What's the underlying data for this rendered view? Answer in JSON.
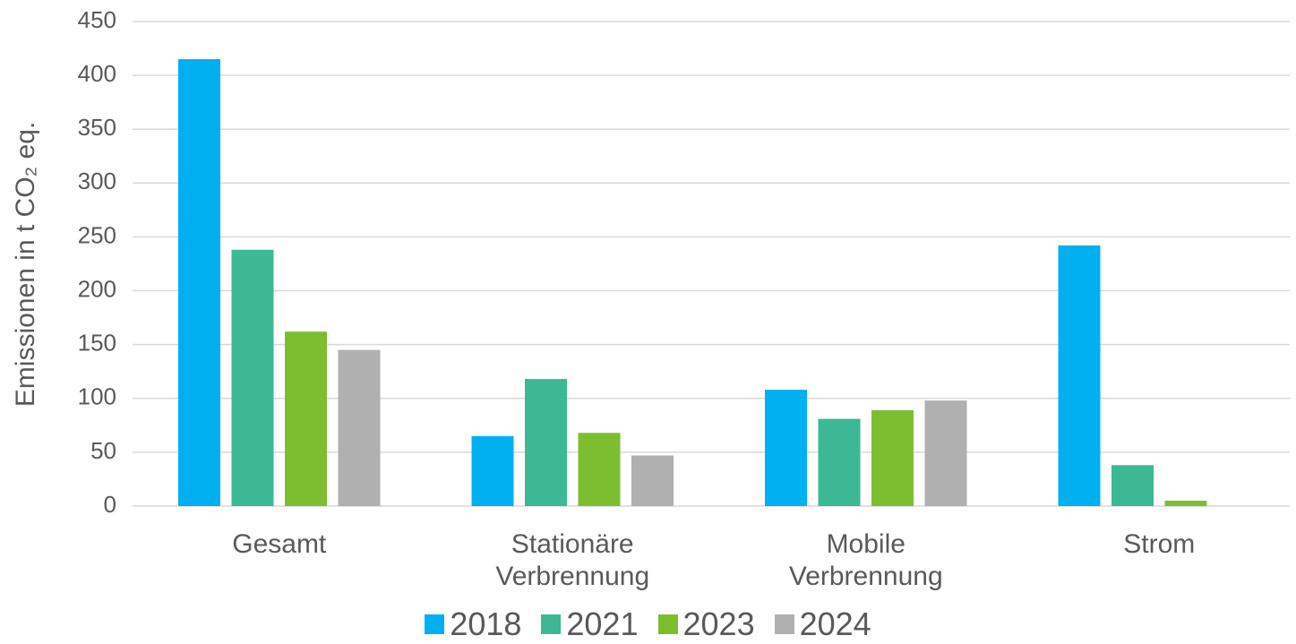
{
  "chart_data": {
    "type": "bar",
    "y_label": "Emissionen in t CO₂ eq.",
    "categories": [
      "Gesamt",
      "Stationäre Verbrennung",
      "Mobile Verbrennung",
      "Strom"
    ],
    "series": [
      {
        "name": "2018",
        "color": "#00B0F0",
        "values": [
          415,
          65,
          108,
          242
        ]
      },
      {
        "name": "2021",
        "color": "#3CB894",
        "values": [
          238,
          118,
          81,
          38
        ]
      },
      {
        "name": "2023",
        "color": "#7DBE31",
        "values": [
          162,
          68,
          89,
          5
        ]
      },
      {
        "name": "2024",
        "color": "#B0B0B0",
        "values": [
          145,
          47,
          98,
          null
        ]
      }
    ],
    "ylim": [
      0,
      450
    ],
    "yticks": [
      0,
      50,
      100,
      150,
      200,
      250,
      300,
      350,
      400,
      450
    ],
    "grid": true,
    "legend": "bottom"
  }
}
